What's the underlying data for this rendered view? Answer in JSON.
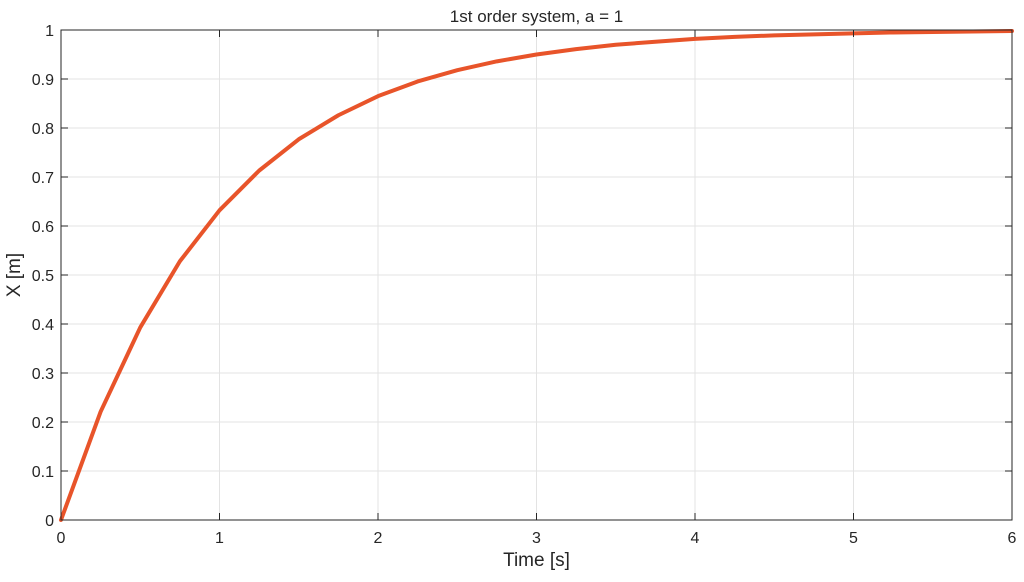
{
  "chart_data": {
    "type": "line",
    "title": "1st order system, a = 1",
    "xlabel": "Time [s]",
    "ylabel": "X [m]",
    "xlim": [
      0,
      6
    ],
    "ylim": [
      0,
      1
    ],
    "xticks": [
      0,
      1,
      2,
      3,
      4,
      5,
      6
    ],
    "xtick_labels": [
      "0",
      "1",
      "2",
      "3",
      "4",
      "5",
      "6"
    ],
    "yticks": [
      0,
      0.1,
      0.2,
      0.3,
      0.4,
      0.5,
      0.6,
      0.7,
      0.8,
      0.9,
      1
    ],
    "ytick_labels": [
      "0",
      "0.1",
      "0.2",
      "0.3",
      "0.4",
      "0.5",
      "0.6",
      "0.7",
      "0.8",
      "0.9",
      "1"
    ],
    "grid": true,
    "series": [
      {
        "color": "#e8542a",
        "x": [
          0,
          0.25,
          0.5,
          0.75,
          1,
          1.25,
          1.5,
          1.75,
          2,
          2.25,
          2.5,
          2.75,
          3,
          3.25,
          3.5,
          3.75,
          4,
          4.25,
          4.5,
          4.75,
          5,
          5.25,
          5.5,
          5.75,
          6
        ],
        "y": [
          0,
          0.221,
          0.393,
          0.528,
          0.632,
          0.713,
          0.777,
          0.826,
          0.865,
          0.895,
          0.918,
          0.936,
          0.95,
          0.961,
          0.97,
          0.976,
          0.982,
          0.986,
          0.989,
          0.991,
          0.993,
          0.995,
          0.996,
          0.997,
          0.998
        ]
      }
    ]
  }
}
